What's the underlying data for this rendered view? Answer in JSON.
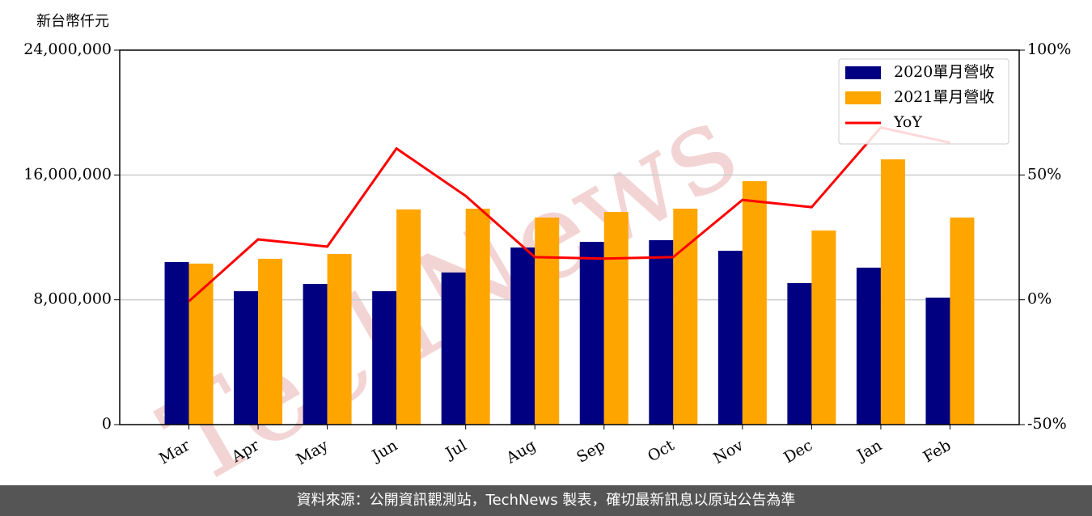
{
  "chart_data": {
    "type": "bar",
    "unit_label": "新台幣仟元",
    "watermark": "TechNews",
    "categories": [
      "Mar",
      "Apr",
      "May",
      "Jun",
      "Jul",
      "Aug",
      "Sep",
      "Oct",
      "Nov",
      "Dec",
      "Jan",
      "Feb"
    ],
    "series": [
      {
        "name": "2020單月營收",
        "color": "#000080",
        "values": [
          10420000,
          8550000,
          9020000,
          8550000,
          9750000,
          11350000,
          11710000,
          11820000,
          11140000,
          9070000,
          10060000,
          8140000
        ]
      },
      {
        "name": "2021單月營收",
        "color": "#ffa500",
        "values": [
          10320000,
          10630000,
          10940000,
          13790000,
          13840000,
          13270000,
          13630000,
          13840000,
          15600000,
          12440000,
          17000000,
          13270000
        ]
      },
      {
        "name": "YoY",
        "color": "#ff0000",
        "type": "line",
        "axis": "y2",
        "values": [
          -0.6,
          24.2,
          21.3,
          60.6,
          41.6,
          17.1,
          16.5,
          17.1,
          40.0,
          37.1,
          69.0,
          62.9
        ]
      }
    ],
    "ylim": [
      0,
      24000000
    ],
    "yticks": [
      0,
      {
        "value": 8000000,
        "label": "8,000,000"
      },
      {
        "value": 16000000,
        "label": "16,000,000"
      },
      {
        "value": 24000000,
        "label": "24,000,000"
      }
    ],
    "y2lim": [
      -50,
      100
    ],
    "y2ticks": [
      {
        "value": -50,
        "label": "-50%"
      },
      {
        "value": 0,
        "label": "0%"
      },
      {
        "value": 50,
        "label": "50%"
      },
      {
        "value": 100,
        "label": "100%"
      }
    ],
    "grid": true,
    "legend": "upper right",
    "footer": "資料來源：公開資訊觀測站，TechNews 製表，確切最新訊息以原站公告為準"
  }
}
